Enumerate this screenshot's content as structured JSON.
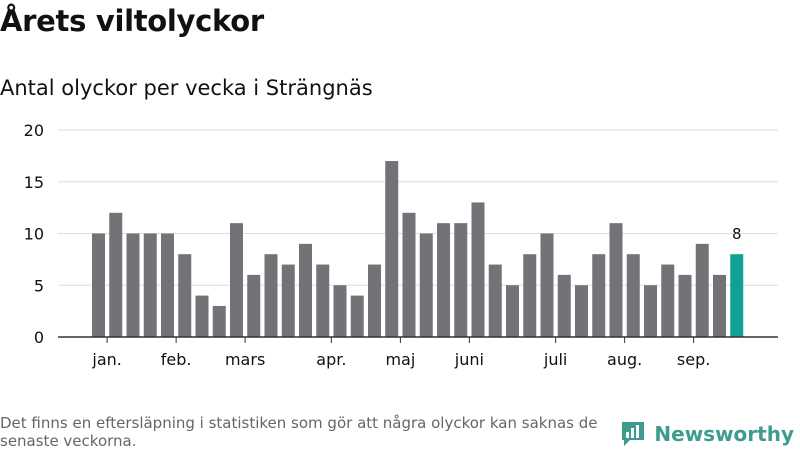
{
  "header": {
    "title": "Årets viltolyckor",
    "subtitle": "Antal olyckor per vecka i Strängnäs"
  },
  "footer": {
    "note": "Det finns en eftersläpning i statistiken som gör att några olyckor kan saknas de senaste veckorna.",
    "brand": "Newsworthy"
  },
  "colors": {
    "bar": "#737277",
    "highlight": "#0fa294",
    "grid": "#dddddd",
    "axis": "#333333",
    "brand": "#3d9b8f"
  },
  "chart_data": {
    "type": "bar",
    "values": [
      10,
      12,
      10,
      10,
      10,
      8,
      4,
      3,
      11,
      6,
      8,
      7,
      9,
      7,
      5,
      4,
      7,
      17,
      12,
      10,
      11,
      11,
      13,
      7,
      5,
      8,
      10,
      6,
      5,
      8,
      11,
      8,
      5,
      7,
      6,
      9,
      6,
      8
    ],
    "highlight_index": 37,
    "highlight_label": "8",
    "ylim": [
      0,
      20
    ],
    "yticks": [
      "0",
      "5",
      "10",
      "15",
      "20"
    ],
    "month_labels": [
      {
        "label": "jan.",
        "bar_index": 0.5
      },
      {
        "label": "feb.",
        "bar_index": 4.5
      },
      {
        "label": "mars",
        "bar_index": 8.5
      },
      {
        "label": "apr.",
        "bar_index": 13.5
      },
      {
        "label": "maj",
        "bar_index": 17.5
      },
      {
        "label": "juni",
        "bar_index": 21.5
      },
      {
        "label": "juli",
        "bar_index": 26.5
      },
      {
        "label": "aug.",
        "bar_index": 30.5
      },
      {
        "label": "sep.",
        "bar_index": 34.5
      }
    ],
    "grid": true,
    "legend": "none"
  }
}
